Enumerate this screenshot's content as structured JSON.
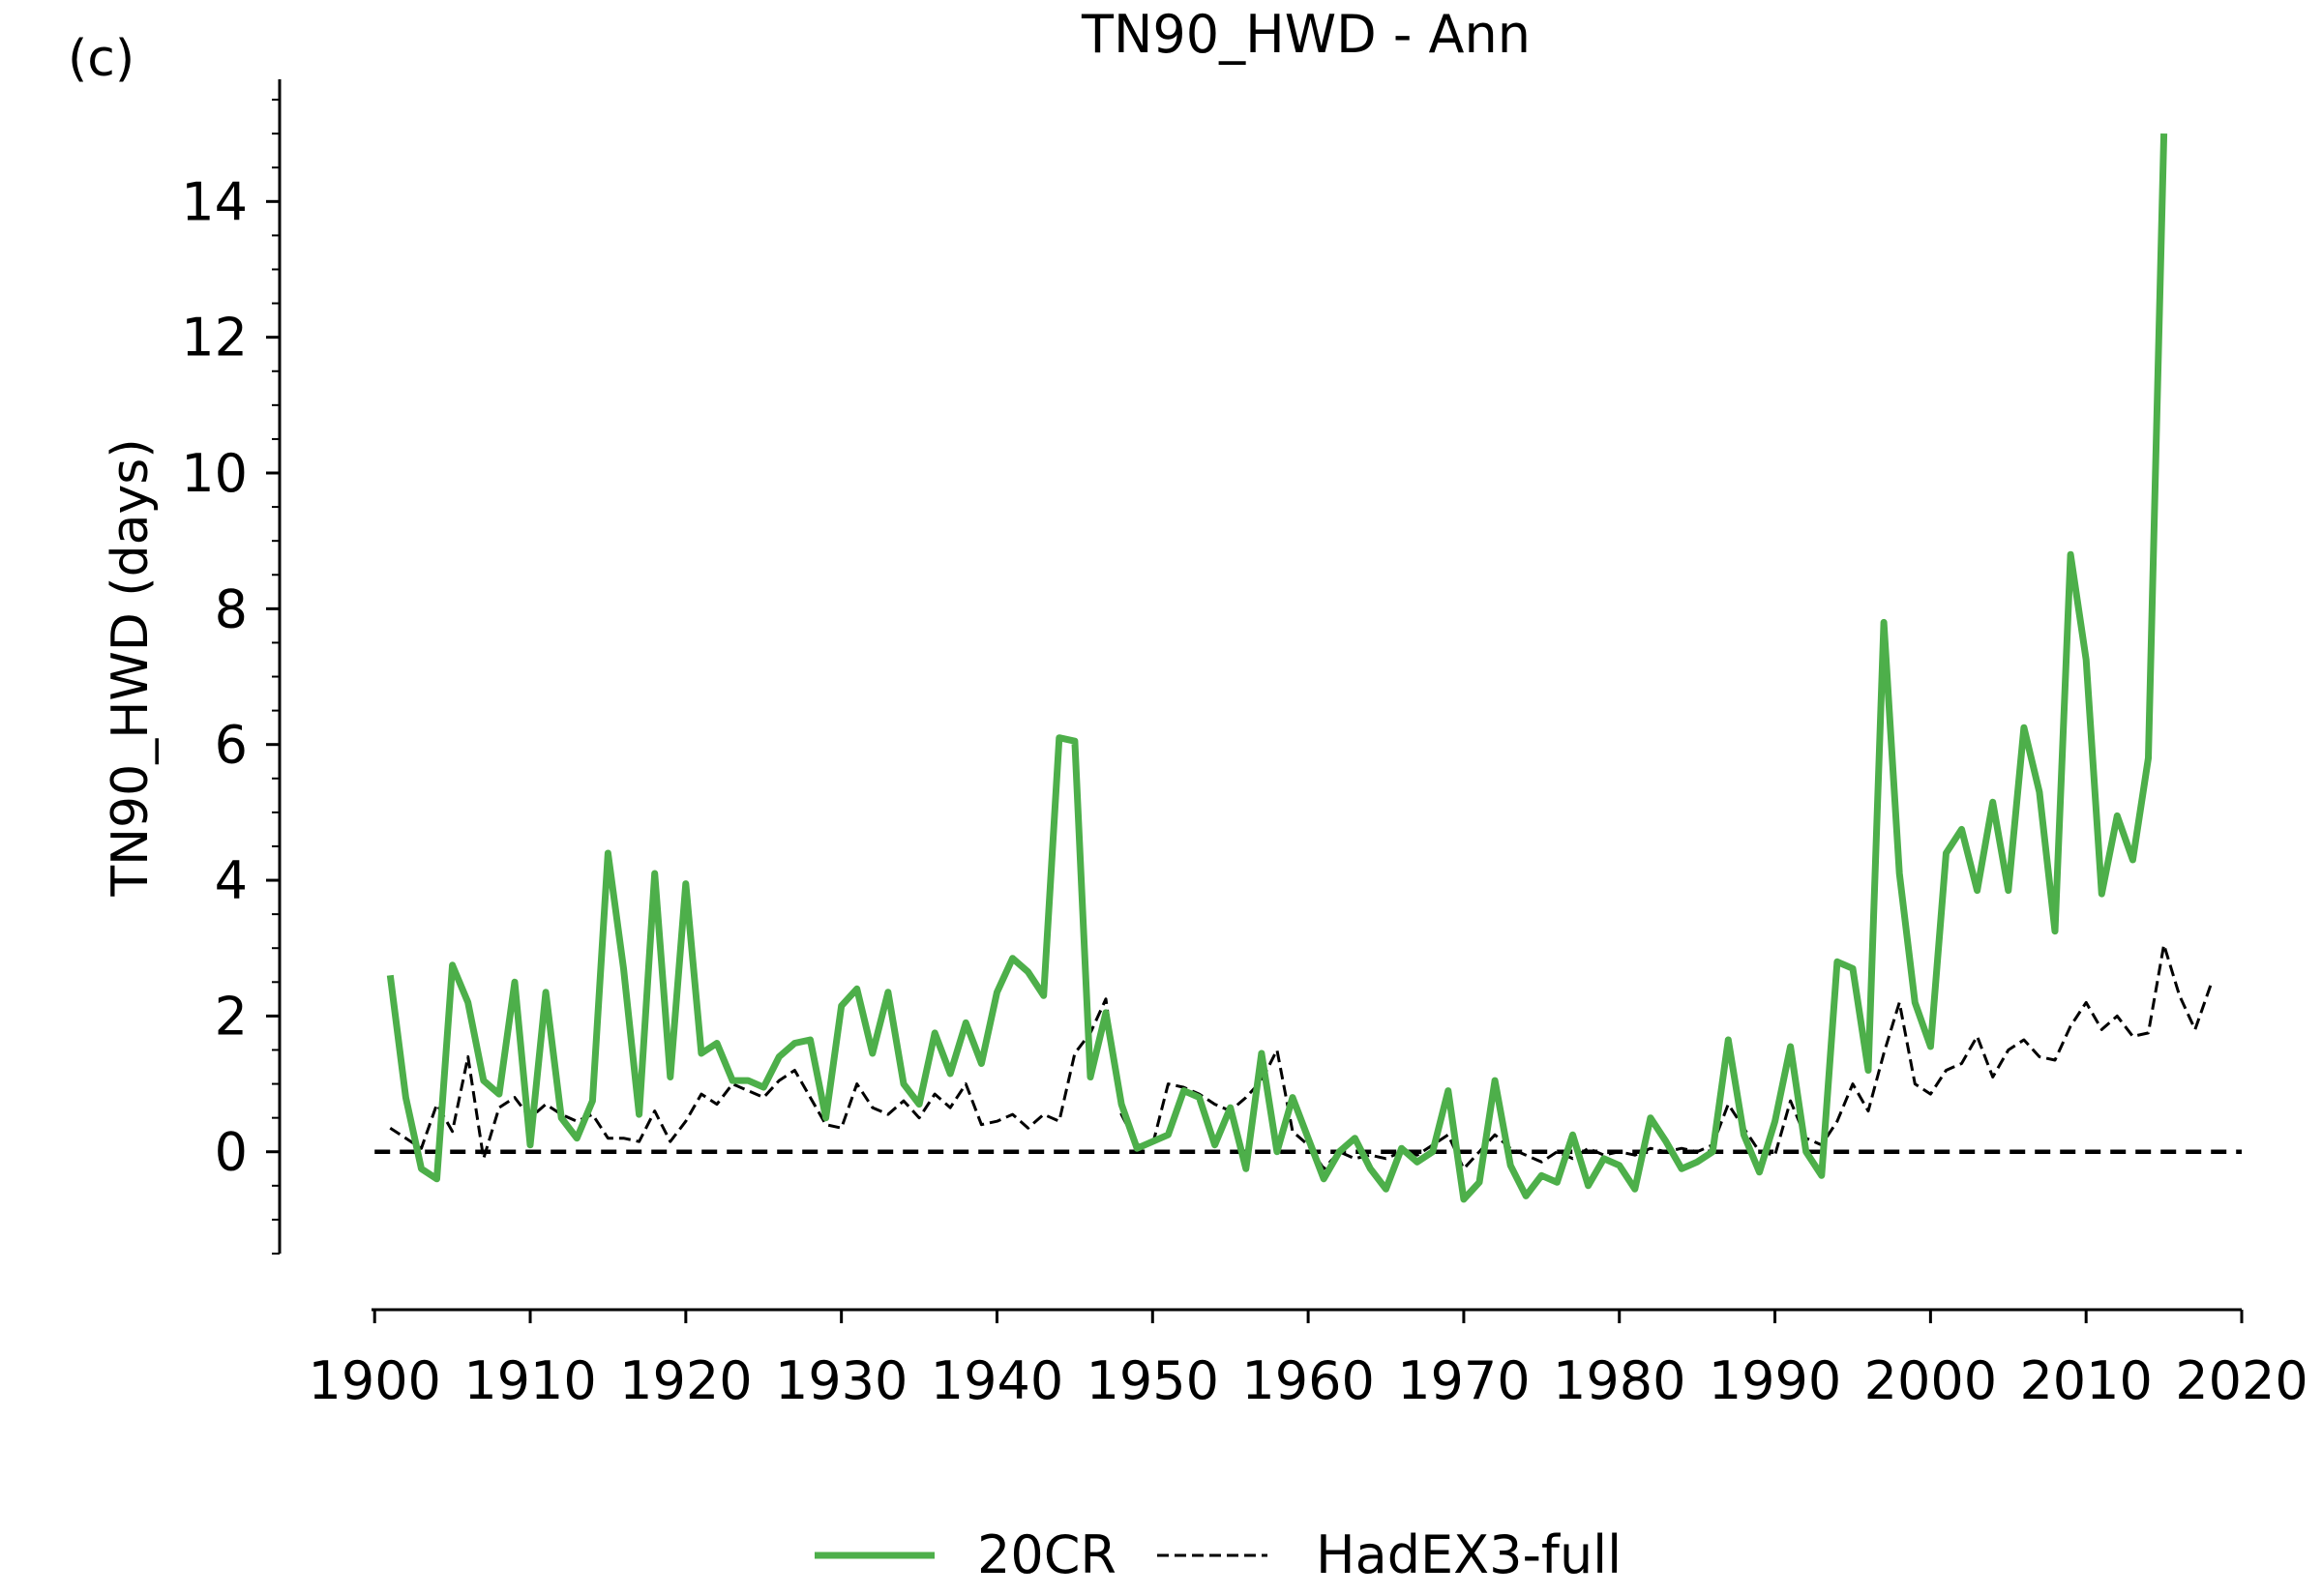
{
  "panel_label": "(c)",
  "chart_data": {
    "type": "line",
    "title": "TN90_HWD - Ann",
    "xlabel": "",
    "ylabel": "TN90_HWD (days)",
    "xlim": [
      1899.8,
      2020
    ],
    "ylim": [
      -1.5,
      15.8
    ],
    "x_ticks": [
      1900,
      1910,
      1920,
      1930,
      1940,
      1950,
      1960,
      1970,
      1980,
      1990,
      2000,
      2010,
      2020
    ],
    "y_ticks": [
      0,
      2,
      4,
      6,
      8,
      10,
      12,
      14
    ],
    "y_minor_step": 0.5,
    "grid": false,
    "legend": {
      "placement": "bottom-center",
      "entries": [
        "20CR",
        "HadEX3-full"
      ]
    },
    "reference_line": {
      "y": 0,
      "style": "dashed",
      "color": "#000000"
    },
    "series": [
      {
        "name": "20CR",
        "color": "#4daf4a",
        "style": "solid",
        "x": [
          1901,
          1902,
          1903,
          1904,
          1905,
          1906,
          1907,
          1908,
          1909,
          1910,
          1911,
          1912,
          1913,
          1914,
          1915,
          1916,
          1917,
          1918,
          1919,
          1920,
          1921,
          1922,
          1923,
          1924,
          1925,
          1926,
          1927,
          1928,
          1929,
          1930,
          1931,
          1932,
          1933,
          1934,
          1935,
          1936,
          1937,
          1938,
          1939,
          1940,
          1941,
          1942,
          1943,
          1944,
          1945,
          1946,
          1947,
          1948,
          1949,
          1950,
          1951,
          1952,
          1953,
          1954,
          1955,
          1956,
          1957,
          1958,
          1959,
          1960,
          1961,
          1962,
          1963,
          1964,
          1965,
          1966,
          1967,
          1968,
          1969,
          1970,
          1971,
          1972,
          1973,
          1974,
          1975,
          1976,
          1977,
          1978,
          1979,
          1980,
          1981,
          1982,
          1983,
          1984,
          1985,
          1986,
          1987,
          1988,
          1989,
          1990,
          1991,
          1992,
          1993,
          1994,
          1995,
          1996,
          1997,
          1998,
          1999,
          2000,
          2001,
          2002,
          2003,
          2004,
          2005,
          2006,
          2007,
          2008,
          2009,
          2010,
          2011,
          2012,
          2013,
          2014,
          2015
        ],
        "y": [
          2.6,
          0.8,
          -0.25,
          -0.4,
          2.75,
          2.2,
          1.05,
          0.85,
          2.5,
          0.1,
          2.35,
          0.5,
          0.2,
          0.75,
          4.4,
          2.7,
          0.55,
          4.1,
          1.1,
          3.95,
          1.45,
          1.6,
          1.05,
          1.05,
          0.95,
          1.4,
          1.6,
          1.65,
          0.5,
          2.15,
          2.4,
          1.45,
          2.35,
          1.0,
          0.7,
          1.75,
          1.15,
          1.9,
          1.3,
          2.35,
          2.85,
          2.65,
          2.3,
          6.1,
          6.05,
          1.1,
          2.05,
          0.7,
          0.05,
          0.15,
          0.25,
          0.9,
          0.8,
          0.1,
          0.65,
          -0.25,
          1.45,
          0.0,
          0.8,
          0.2,
          -0.4,
          0.0,
          0.2,
          -0.25,
          -0.55,
          0.05,
          -0.15,
          0.0,
          0.9,
          -0.7,
          -0.45,
          1.05,
          -0.2,
          -0.65,
          -0.35,
          -0.45,
          0.25,
          -0.5,
          -0.1,
          -0.2,
          -0.55,
          0.5,
          0.15,
          -0.25,
          -0.15,
          0.0,
          1.65,
          0.25,
          -0.3,
          0.45,
          1.55,
          0.0,
          -0.35,
          2.8,
          2.7,
          1.2,
          7.8,
          4.1,
          2.2,
          1.55,
          4.4,
          4.75,
          3.85,
          5.15,
          3.85,
          6.25,
          5.3,
          3.25,
          8.8,
          7.25,
          3.8,
          4.95,
          4.3,
          5.8,
          15.0
        ]
      },
      {
        "name": "HadEX3-full",
        "color": "#000000",
        "style": "dashed",
        "x": [
          1901,
          1902,
          1903,
          1904,
          1905,
          1906,
          1907,
          1908,
          1909,
          1910,
          1911,
          1912,
          1913,
          1914,
          1915,
          1916,
          1917,
          1918,
          1919,
          1920,
          1921,
          1922,
          1923,
          1924,
          1925,
          1926,
          1927,
          1928,
          1929,
          1930,
          1931,
          1932,
          1933,
          1934,
          1935,
          1936,
          1937,
          1938,
          1939,
          1940,
          1941,
          1942,
          1943,
          1944,
          1945,
          1946,
          1947,
          1948,
          1949,
          1950,
          1951,
          1952,
          1953,
          1954,
          1955,
          1956,
          1957,
          1958,
          1959,
          1960,
          1961,
          1962,
          1963,
          1964,
          1965,
          1966,
          1967,
          1968,
          1969,
          1970,
          1971,
          1972,
          1973,
          1974,
          1975,
          1976,
          1977,
          1978,
          1979,
          1980,
          1981,
          1982,
          1983,
          1984,
          1985,
          1986,
          1987,
          1988,
          1989,
          1990,
          1991,
          1992,
          1993,
          1994,
          1995,
          1996,
          1997,
          1998,
          1999,
          2000,
          2001,
          2002,
          2003,
          2004,
          2005,
          2006,
          2007,
          2008,
          2009,
          2010,
          2011,
          2012,
          2013,
          2014,
          2015,
          2016,
          2017,
          2018
        ],
        "y": [
          0.35,
          0.2,
          0.05,
          0.7,
          0.3,
          1.4,
          -0.1,
          0.65,
          0.8,
          0.5,
          0.7,
          0.55,
          0.45,
          0.55,
          0.2,
          0.2,
          0.15,
          0.6,
          0.15,
          0.45,
          0.85,
          0.7,
          1.0,
          0.9,
          0.8,
          1.05,
          1.2,
          0.8,
          0.4,
          0.35,
          1.0,
          0.65,
          0.55,
          0.75,
          0.5,
          0.85,
          0.65,
          1.0,
          0.4,
          0.45,
          0.55,
          0.35,
          0.55,
          0.45,
          1.45,
          1.75,
          2.25,
          0.55,
          0.1,
          0.1,
          1.0,
          0.95,
          0.85,
          0.7,
          0.6,
          0.8,
          1.05,
          1.5,
          0.3,
          0.1,
          -0.25,
          0.0,
          -0.1,
          -0.05,
          -0.1,
          0.0,
          -0.05,
          0.1,
          0.25,
          -0.25,
          0.0,
          0.25,
          0.05,
          -0.05,
          -0.15,
          0.0,
          -0.1,
          0.05,
          -0.05,
          0.0,
          -0.05,
          0.05,
          0.0,
          0.05,
          0.0,
          0.1,
          0.7,
          0.35,
          0.0,
          -0.05,
          0.75,
          0.2,
          0.1,
          0.45,
          1.0,
          0.6,
          1.45,
          2.2,
          1.0,
          0.85,
          1.2,
          1.3,
          1.7,
          1.1,
          1.5,
          1.65,
          1.4,
          1.35,
          1.85,
          2.2,
          1.8,
          2.0,
          1.7,
          1.75,
          3.05,
          2.3,
          1.8,
          2.45
        ]
      }
    ]
  }
}
